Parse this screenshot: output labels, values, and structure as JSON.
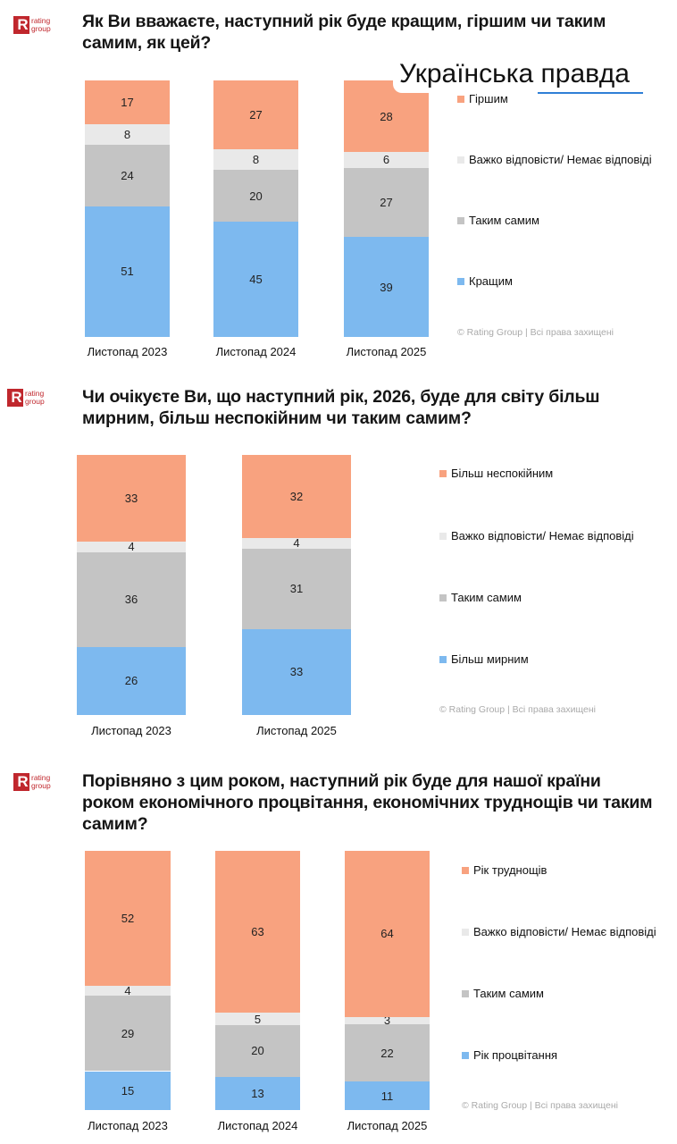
{
  "logo": {
    "letter": "R",
    "text_line1": "rating",
    "text_line2": "group"
  },
  "watermark": "Українська правда",
  "colors": {
    "orange": "#F8A27F",
    "light_gray": "#E9E9E9",
    "gray": "#C4C4C4",
    "blue": "#7DB9EF"
  },
  "chart_data": [
    {
      "type": "bar",
      "stacked": true,
      "title": "Як Ви вважаєте, наступний рік буде кращим, гіршим чи таким самим, як цей?",
      "categories": [
        "Листопад 2023",
        "Листопад 2024",
        "Листопад 2025"
      ],
      "series": [
        {
          "name": "Кращим",
          "color": "#7DB9EF",
          "values": [
            51,
            45,
            39
          ]
        },
        {
          "name": "Таким самим",
          "color": "#C4C4C4",
          "values": [
            24,
            20,
            27
          ]
        },
        {
          "name": "Важко відповісти/ Немає відповіді",
          "color": "#E9E9E9",
          "values": [
            8,
            8,
            6
          ]
        },
        {
          "name": "Гіршим",
          "color": "#F8A27F",
          "values": [
            17,
            27,
            28
          ]
        }
      ],
      "legend_position": "right",
      "footer": "© Rating Group | Всі права захищені"
    },
    {
      "type": "bar",
      "stacked": true,
      "title": "Чи очікуєте Ви, що наступний рік, 2026, буде для світу більш мирним, більш неспокійним чи таким самим?",
      "categories": [
        "Листопад 2023",
        "Листопад 2025"
      ],
      "series": [
        {
          "name": "Більш мирним",
          "color": "#7DB9EF",
          "values": [
            26,
            33
          ]
        },
        {
          "name": "Таким самим",
          "color": "#C4C4C4",
          "values": [
            36,
            31
          ]
        },
        {
          "name": "Важко відповісти/ Немає відповіді",
          "color": "#E9E9E9",
          "values": [
            4,
            4
          ]
        },
        {
          "name": "Більш неспокійним",
          "color": "#F8A27F",
          "values": [
            33,
            32
          ]
        }
      ],
      "legend_position": "right",
      "footer": "© Rating Group | Всі права захищені"
    },
    {
      "type": "bar",
      "stacked": true,
      "title": "Порівняно з цим роком, наступний рік буде для нашої країни роком економічного процвітання, економічних труднощів чи таким самим?",
      "categories": [
        "Листопад 2023",
        "Листопад 2024",
        "Листопад 2025"
      ],
      "series": [
        {
          "name": "Рік процвітання",
          "color": "#7DB9EF",
          "values": [
            15,
            13,
            11
          ]
        },
        {
          "name": "Таким самим",
          "color": "#C4C4C4",
          "values": [
            29,
            20,
            22
          ]
        },
        {
          "name": "Важко відповісти/ Немає відповіді",
          "color": "#E9E9E9",
          "values": [
            4,
            5,
            3
          ]
        },
        {
          "name": "Рік труднощів",
          "color": "#F8A27F",
          "values": [
            52,
            63,
            64
          ]
        }
      ],
      "legend_position": "right",
      "footer": "© Rating Group | Всі права захищені"
    }
  ]
}
